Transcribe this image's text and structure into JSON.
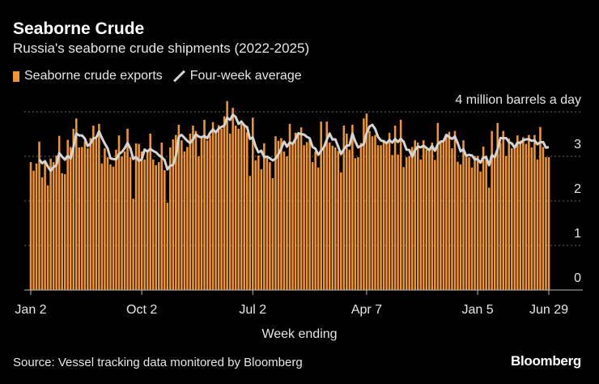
{
  "header": {
    "title": "Seaborne Crude",
    "subtitle": "Russia's seaborne crude shipments (2022-2025)"
  },
  "legend": {
    "bar_label": "Seaborne crude exports",
    "line_label": "Four-week average"
  },
  "footer": {
    "source": "Source: Vessel tracking data monitored by Bloomberg",
    "logo": "Bloomberg"
  },
  "chart_data": {
    "type": "bar",
    "title": "Seaborne Crude",
    "subtitle": "Russia's seaborne crude shipments (2022-2025)",
    "xlabel": "Week ending",
    "ylabel": "4 million barrels a day",
    "ylim": [
      0,
      4
    ],
    "yticks": [
      "0",
      "1",
      "2",
      "3"
    ],
    "x_tick_labels": [
      "Jan 2",
      "Oct 2",
      "Jul 2",
      "Apr 7",
      "Jan 5",
      "Jun 29"
    ],
    "x_tick_dates": [
      "2022-01-02",
      "2022-10-02",
      "2023-07-02",
      "2024-04-07",
      "2025-01-05",
      "2025-06-29"
    ],
    "x_range": [
      "2022-01-02",
      "2025-06-29"
    ],
    "x_frequency": "weekly",
    "grid": true,
    "legend_position": "top-left",
    "colors": {
      "bars": "#f0962f",
      "average_line": "#d4d4d4",
      "background": "#000000",
      "grid": "#666666"
    },
    "series": [
      {
        "name": "Seaborne crude exports",
        "type": "bar",
        "values": [
          2.87,
          2.68,
          2.84,
          3.33,
          2.53,
          2.87,
          2.35,
          2.95,
          2.87,
          3.02,
          3.46,
          2.62,
          2.6,
          3.37,
          3.21,
          3.62,
          3.85,
          3.2,
          3.21,
          3.34,
          3.18,
          3.41,
          3.69,
          3.4,
          3.73,
          2.84,
          3.18,
          2.98,
          2.82,
          2.77,
          3.15,
          3.47,
          3.0,
          3.11,
          3.62,
          2.98,
          2.05,
          3.29,
          3.28,
          3.11,
          2.93,
          3.12,
          3.51,
          2.93,
          2.8,
          2.87,
          3.31,
          2.69,
          1.96,
          3.2,
          3.38,
          3.48,
          3.71,
          3.36,
          3.11,
          3.21,
          3.51,
          3.69,
          3.57,
          3.0,
          3.45,
          3.82,
          3.36,
          3.47,
          3.77,
          3.55,
          3.7,
          3.62,
          3.9,
          4.24,
          3.51,
          4.09,
          3.69,
          3.62,
          3.73,
          3.73,
          3.54,
          2.56,
          3.87,
          2.91,
          3.02,
          2.71,
          3.29,
          2.96,
          2.87,
          2.51,
          3.45,
          3.35,
          3.41,
          3.11,
          3.0,
          3.73,
          3.28,
          3.53,
          3.53,
          3.65,
          3.25,
          3.32,
          3.4,
          2.87,
          3.11,
          2.75,
          3.78,
          3.18,
          3.78,
          3.31,
          3.24,
          3.2,
          3.12,
          2.64,
          3.69,
          3.51,
          3.15,
          3.71,
          2.96,
          2.98,
          3.3,
          3.85,
          3.96,
          3.57,
          3.45,
          3.48,
          3.25,
          3.25,
          3.37,
          3.31,
          3.53,
          3.03,
          3.69,
          3.04,
          3.82,
          2.76,
          2.98,
          3.01,
          3.21,
          3.36,
          3.31,
          2.93,
          3.36,
          3.15,
          3.12,
          3.31,
          2.92,
          3.75,
          3.34,
          3.36,
          3.48,
          3.55,
          3.18,
          3.57,
          2.88,
          2.82,
          3.36,
          2.98,
          2.98,
          2.75,
          3.01,
          3.01,
          2.66,
          3.22,
          3.02,
          2.3,
          3.57,
          3.02,
          3.75,
          3.3,
          3.57,
          3.01,
          3.4,
          3.18,
          3.19,
          3.47,
          3.35,
          3.43,
          3.28,
          3.48,
          3.2,
          3.48,
          2.93,
          3.66,
          3.21,
          2.98,
          2.98
        ]
      },
      {
        "name": "Four-week average",
        "type": "line",
        "derived_from": "Seaborne crude exports",
        "window_weeks": 4
      }
    ]
  }
}
